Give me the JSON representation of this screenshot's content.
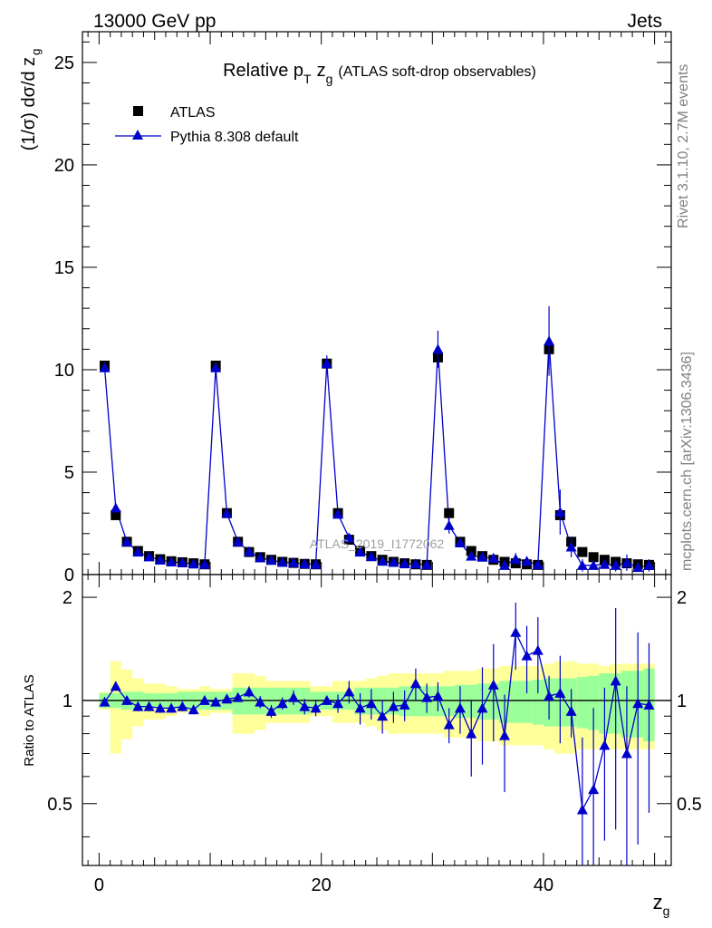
{
  "header": {
    "left": "13000 GeV pp",
    "right": "Jets"
  },
  "side_labels": {
    "rivet": "Rivet 3.1.10,  2.7M events",
    "mcplots": "mcplots.cern.ch [arXiv:1306.3436]"
  },
  "watermark": "ATLAS_2019_I1772062",
  "chart_data": [
    {
      "type": "scatter",
      "title_main": "Relative p",
      "title_sub": "T",
      "title_var": "z",
      "title_var_sub": "g",
      "title_suffix": "(ATLAS soft-drop observables)",
      "ylabel_main": "(1/σ) dσ/d z",
      "ylabel_sub": "g",
      "ylim": [
        0,
        26.5
      ],
      "xlim": [
        -1.5,
        51.5
      ],
      "yticks": [
        0,
        5,
        10,
        15,
        20,
        25
      ],
      "legend": [
        {
          "name": "ATLAS",
          "marker": "square",
          "color": "#000000"
        },
        {
          "name": "Pythia 8.308 default",
          "marker": "triangle",
          "color": "#0000cc"
        }
      ],
      "x": [
        0.5,
        1.5,
        2.5,
        3.5,
        4.5,
        5.5,
        6.5,
        7.5,
        8.5,
        9.5,
        10.5,
        11.5,
        12.5,
        13.5,
        14.5,
        15.5,
        16.5,
        17.5,
        18.5,
        19.5,
        20.5,
        21.5,
        22.5,
        23.5,
        24.5,
        25.5,
        26.5,
        27.5,
        28.5,
        29.5,
        30.5,
        31.5,
        32.5,
        33.5,
        34.5,
        35.5,
        36.5,
        37.5,
        38.5,
        39.5,
        40.5,
        41.5,
        42.5,
        43.5,
        44.5,
        45.5,
        46.5,
        47.5,
        48.5,
        49.5
      ],
      "series": [
        {
          "name": "ATLAS",
          "values": [
            10.2,
            2.9,
            1.6,
            1.15,
            0.9,
            0.75,
            0.65,
            0.6,
            0.55,
            0.5,
            10.2,
            3.0,
            1.6,
            1.1,
            0.85,
            0.72,
            0.62,
            0.57,
            0.52,
            0.5,
            10.3,
            3.0,
            1.7,
            1.15,
            0.9,
            0.72,
            0.62,
            0.55,
            0.5,
            0.47,
            10.6,
            3.0,
            1.6,
            1.15,
            0.9,
            0.72,
            0.62,
            0.55,
            0.5,
            0.47,
            11.0,
            2.9,
            1.6,
            1.1,
            0.85,
            0.72,
            0.62,
            0.55,
            0.5,
            0.47
          ]
        },
        {
          "name": "Pythia 8.308 default",
          "values": [
            10.1,
            3.25,
            1.6,
            1.1,
            0.87,
            0.71,
            0.62,
            0.58,
            0.52,
            0.5,
            10.1,
            3.0,
            1.6,
            1.12,
            0.82,
            0.7,
            0.6,
            0.58,
            0.52,
            0.5,
            10.3,
            2.95,
            1.8,
            1.1,
            0.88,
            0.65,
            0.6,
            0.53,
            0.52,
            0.48,
            11.0,
            2.4,
            1.55,
            0.9,
            0.85,
            0.8,
            0.45,
            0.75,
            0.65,
            0.48,
            11.4,
            3.05,
            1.35,
            0.45,
            0.45,
            0.5,
            0.45,
            0.58,
            0.35,
            0.45
          ],
          "errors": [
            0.05,
            0.1,
            0.05,
            0.04,
            0.03,
            0.03,
            0.03,
            0.03,
            0.03,
            0.03,
            0.15,
            0.1,
            0.06,
            0.04,
            0.04,
            0.03,
            0.03,
            0.03,
            0.03,
            0.03,
            0.4,
            0.2,
            0.1,
            0.06,
            0.05,
            0.05,
            0.05,
            0.05,
            0.06,
            0.05,
            0.9,
            0.4,
            0.2,
            0.12,
            0.1,
            0.2,
            0.2,
            0.3,
            0.2,
            0.2,
            1.7,
            1.1,
            0.5,
            0.3,
            0.2,
            0.2,
            0.3,
            0.4,
            0.2,
            0.3
          ]
        }
      ]
    },
    {
      "type": "scatter",
      "ylabel": "Ratio to ATLAS",
      "xlabel_main": "z",
      "xlabel_sub": "g",
      "ylim": [
        0.33,
        2.33
      ],
      "xlim": [
        -1.5,
        51.5
      ],
      "xticks": [
        0,
        20,
        40
      ],
      "yticks": [
        0.5,
        1,
        2
      ],
      "reference": 1,
      "band_green_half": [
        0.05,
        0.05,
        0.06,
        0.06,
        0.05,
        0.05,
        0.05,
        0.06,
        0.06,
        0.06,
        0.06,
        0.06,
        0.09,
        0.09,
        0.09,
        0.09,
        0.09,
        0.09,
        0.09,
        0.06,
        0.06,
        0.06,
        0.06,
        0.09,
        0.09,
        0.09,
        0.09,
        0.1,
        0.1,
        0.1,
        0.1,
        0.1,
        0.11,
        0.11,
        0.12,
        0.12,
        0.14,
        0.14,
        0.14,
        0.15,
        0.16,
        0.16,
        0.16,
        0.17,
        0.18,
        0.2,
        0.2,
        0.22,
        0.22,
        0.24
      ],
      "band_yellow_half": [
        0.06,
        0.3,
        0.23,
        0.16,
        0.12,
        0.12,
        0.1,
        0.08,
        0.08,
        0.1,
        0.08,
        0.08,
        0.2,
        0.2,
        0.18,
        0.14,
        0.14,
        0.14,
        0.14,
        0.1,
        0.1,
        0.14,
        0.14,
        0.14,
        0.16,
        0.18,
        0.2,
        0.2,
        0.2,
        0.2,
        0.2,
        0.22,
        0.22,
        0.22,
        0.24,
        0.24,
        0.26,
        0.26,
        0.26,
        0.26,
        0.28,
        0.3,
        0.3,
        0.28,
        0.28,
        0.26,
        0.28,
        0.28,
        0.28,
        0.28
      ],
      "ratio": [
        0.99,
        1.1,
        1.0,
        0.96,
        0.96,
        0.95,
        0.95,
        0.96,
        0.94,
        1.0,
        0.99,
        1.01,
        1.02,
        1.06,
        0.99,
        0.93,
        0.98,
        1.02,
        0.96,
        0.95,
        1.0,
        0.98,
        1.06,
        0.95,
        0.98,
        0.9,
        0.96,
        0.97,
        1.12,
        1.02,
        1.03,
        0.85,
        0.95,
        0.8,
        0.95,
        1.11,
        0.79,
        1.58,
        1.35,
        1.4,
        1.03,
        1.05,
        0.93,
        0.48,
        0.55,
        0.74,
        1.14,
        0.7,
        0.98,
        0.97
      ],
      "ratio_err": [
        0.02,
        0.03,
        0.03,
        0.03,
        0.03,
        0.03,
        0.03,
        0.03,
        0.03,
        0.03,
        0.02,
        0.03,
        0.03,
        0.04,
        0.04,
        0.04,
        0.04,
        0.05,
        0.05,
        0.05,
        0.03,
        0.06,
        0.08,
        0.1,
        0.1,
        0.1,
        0.1,
        0.1,
        0.12,
        0.1,
        0.1,
        0.1,
        0.15,
        0.2,
        0.3,
        0.35,
        0.25,
        0.35,
        0.3,
        0.35,
        0.15,
        0.3,
        0.15,
        0.3,
        0.4,
        0.35,
        0.72,
        0.4,
        0.6,
        0.5
      ]
    }
  ]
}
